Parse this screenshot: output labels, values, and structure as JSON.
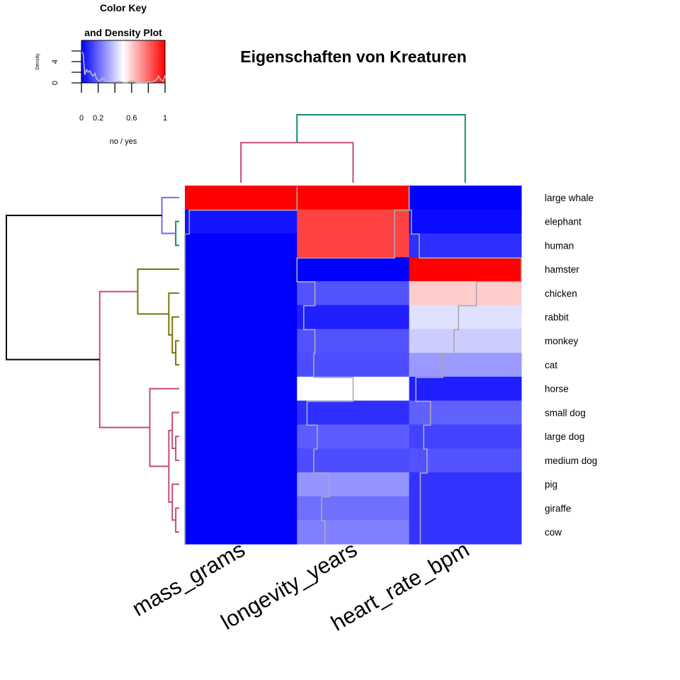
{
  "chart_data": {
    "type": "heatmap",
    "title": "Eigenschaften von Kreaturen",
    "columns": [
      "mass_grams",
      "longevity_years",
      "heart_rate_bpm"
    ],
    "rows": [
      "large whale",
      "elephant",
      "human",
      "hamster",
      "chicken",
      "rabbit",
      "monkey",
      "cat",
      "horse",
      "small dog",
      "large dog",
      "medium dog",
      "pig",
      "giraffe",
      "cow"
    ],
    "values": [
      [
        1.0,
        1.0,
        0.0
      ],
      [
        0.04,
        0.87,
        0.02
      ],
      [
        0.0,
        0.87,
        0.09
      ],
      [
        0.0,
        0.0,
        1.0
      ],
      [
        0.0,
        0.16,
        0.6
      ],
      [
        0.0,
        0.06,
        0.44
      ],
      [
        0.0,
        0.16,
        0.4
      ],
      [
        0.0,
        0.15,
        0.3
      ],
      [
        0.0,
        0.5,
        0.06
      ],
      [
        0.0,
        0.09,
        0.19
      ],
      [
        0.0,
        0.18,
        0.13
      ],
      [
        0.0,
        0.15,
        0.16
      ],
      [
        0.0,
        0.29,
        0.1
      ],
      [
        0.0,
        0.22,
        0.1
      ],
      [
        0.0,
        0.25,
        0.1
      ]
    ],
    "trace": "column",
    "trace_color": "#aaaaaa",
    "color_scale": {
      "low": "#0000ff",
      "mid": "#ffffff",
      "high": "#ff0000",
      "range": [
        0,
        1
      ]
    },
    "color_key": {
      "title_line1": "Color Key",
      "title_line2": "and Density Plot",
      "xlabel": "no / yes",
      "ylabel": "Density",
      "x_ticks": [
        "0",
        "0.2",
        "0.6",
        "1"
      ],
      "x_tick_values": [
        0,
        0.2,
        0.6,
        1
      ],
      "y_ticks": [
        "0",
        "4"
      ],
      "y_tick_values": [
        0,
        4
      ],
      "y_max": 8,
      "density_x": [
        0,
        0.02,
        0.04,
        0.06,
        0.08,
        0.1,
        0.12,
        0.14,
        0.16,
        0.18,
        0.2,
        0.22,
        0.25,
        0.3,
        0.35,
        0.4,
        0.45,
        0.5,
        0.55,
        0.6,
        0.65,
        0.7,
        0.75,
        0.8,
        0.85,
        0.9,
        0.92,
        0.95,
        0.98,
        1.0
      ],
      "density_y": [
        6.0,
        5.5,
        1.5,
        2.5,
        2.0,
        2.3,
        1.6,
        1.3,
        1.8,
        0.8,
        0.5,
        0.4,
        0.9,
        0.3,
        0.2,
        0.15,
        0.3,
        0.1,
        0.1,
        0.4,
        0.1,
        0.05,
        0.1,
        0.1,
        0.2,
        0.6,
        1.3,
        0.6,
        0.3,
        1.4
      ]
    },
    "row_dendrogram": {
      "colors": {
        "c1": "#7b68ee",
        "c2": "#138a72",
        "c3": "#777700",
        "c4": "#c54a7c",
        "root": "#000000"
      },
      "merges": [
        [
          "L1",
          "L2",
          0.98,
          "c2"
        ],
        [
          "L0",
          "N0",
          0.9,
          "c1"
        ],
        [
          "L6",
          "L7",
          0.98,
          "c3"
        ],
        [
          "L5",
          "N2",
          0.96,
          "c3"
        ],
        [
          "L4",
          "N3",
          0.94,
          "c3"
        ],
        [
          "L3",
          "N4",
          0.76,
          "c3"
        ],
        [
          "L10",
          "L11",
          0.98,
          "c4"
        ],
        [
          "L9",
          "N6",
          0.96,
          "c4"
        ],
        [
          "L13",
          "L14",
          0.98,
          "c4"
        ],
        [
          "L12",
          "N8",
          0.96,
          "c4"
        ],
        [
          "N7",
          "N9",
          0.94,
          "c4"
        ],
        [
          "L8",
          "N10",
          0.83,
          "c4"
        ],
        [
          "N5",
          "N11",
          0.54,
          "c4"
        ],
        [
          "N1",
          "N12",
          0.0,
          "root"
        ]
      ]
    },
    "col_dendrogram": {
      "colors": {
        "c1": "#c54a7c",
        "c2": "#138a72"
      },
      "merges": [
        [
          "L0",
          "L1",
          0.41,
          "c1"
        ],
        [
          "N0",
          "L2",
          0.0,
          "c2"
        ]
      ]
    }
  }
}
